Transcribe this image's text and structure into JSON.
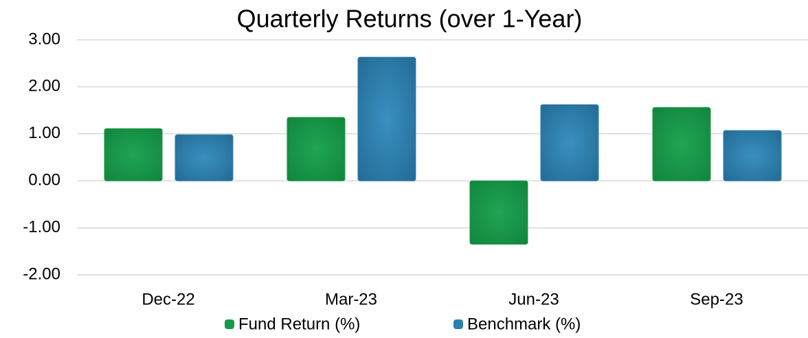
{
  "chart_data": {
    "type": "bar",
    "title": "Quarterly Returns (over 1-Year)",
    "categories": [
      "Dec-22",
      "Mar-23",
      "Jun-23",
      "Sep-23"
    ],
    "series": [
      {
        "name": "Fund Return (%)",
        "color": "#1a9a4a",
        "values": [
          1.11,
          1.35,
          -1.35,
          1.56
        ]
      },
      {
        "name": "Benchmark (%)",
        "color": "#2e7fae",
        "values": [
          0.98,
          2.63,
          1.62,
          1.07
        ]
      }
    ],
    "ylim": [
      -2,
      3
    ],
    "yticks": [
      {
        "value": -2,
        "label": "-2.00"
      },
      {
        "value": -1,
        "label": "-1.00"
      },
      {
        "value": 0,
        "label": "0.00"
      },
      {
        "value": 1,
        "label": "1.00"
      },
      {
        "value": 2,
        "label": "2.00"
      },
      {
        "value": 3,
        "label": "3.00"
      }
    ],
    "grid": true,
    "legend": "bottom"
  }
}
